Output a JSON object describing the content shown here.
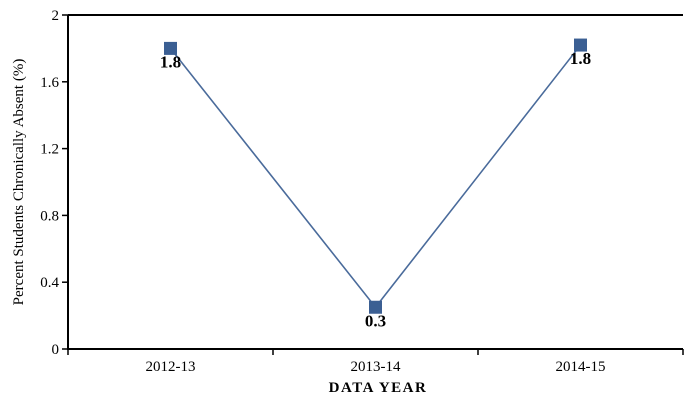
{
  "chart_data": {
    "type": "line",
    "categories": [
      "2012-13",
      "2013-14",
      "2014-15"
    ],
    "series": [
      {
        "values": [
          1.8,
          0.25,
          1.82
        ],
        "data_labels": [
          "1.8",
          "0.3",
          "1.8"
        ],
        "color": "#4a6b9b",
        "marker_color": "#3b5f93",
        "marker": "square"
      }
    ],
    "xlabel": "DATA  YEAR",
    "ylabel": "Percent Students Chronically Absent (%)",
    "ylim": [
      0,
      2
    ],
    "yticks": [
      "0",
      "0.4",
      "0.8",
      "1.2",
      "1.6",
      "2"
    ],
    "grid": false,
    "legend": "none"
  }
}
